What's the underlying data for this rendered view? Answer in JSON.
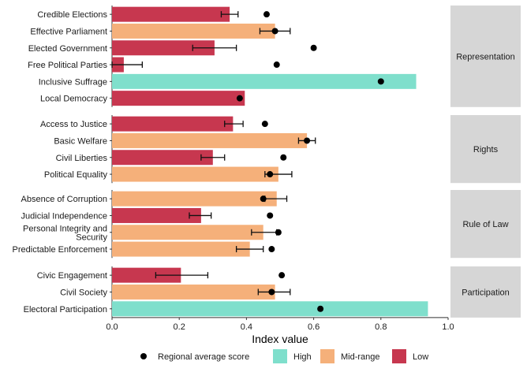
{
  "chart_data": {
    "type": "bar",
    "orientation": "horizontal",
    "xlabel": "Index value",
    "xlim": [
      0,
      1.0
    ],
    "xticks": [
      "0.0",
      "0.2",
      "0.4",
      "0.6",
      "0.8",
      "1.0"
    ],
    "grid": false,
    "legend_position": "bottom",
    "legend": {
      "marker_label": "Regional average score",
      "categories": [
        {
          "key": "high",
          "label": "High",
          "color": "#7fdfcc"
        },
        {
          "key": "mid",
          "label": "Mid-range",
          "color": "#f5b07a"
        },
        {
          "key": "low",
          "label": "Low",
          "color": "#c7374f"
        }
      ]
    },
    "panels": [
      {
        "strip": "Representation",
        "rows": [
          {
            "label": "Credible Elections",
            "value": 0.35,
            "err_low": 0.325,
            "err_high": 0.375,
            "category": "low",
            "regional_avg": 0.46
          },
          {
            "label": "Effective Parliament",
            "value": 0.485,
            "err_low": 0.44,
            "err_high": 0.53,
            "category": "mid",
            "regional_avg": 0.485
          },
          {
            "label": "Elected Government",
            "value": 0.305,
            "err_low": 0.24,
            "err_high": 0.37,
            "category": "low",
            "regional_avg": 0.6
          },
          {
            "label": "Free Political Parties",
            "value": 0.035,
            "err_low": 0.0,
            "err_high": 0.09,
            "category": "low",
            "regional_avg": 0.49
          },
          {
            "label": "Inclusive Suffrage",
            "value": 0.905,
            "category": "high",
            "regional_avg": 0.8
          },
          {
            "label": "Local Democracy",
            "value": 0.395,
            "category": "low",
            "regional_avg": 0.38
          }
        ]
      },
      {
        "strip": "Rights",
        "rows": [
          {
            "label": "Access to Justice",
            "value": 0.36,
            "err_low": 0.335,
            "err_high": 0.39,
            "category": "low",
            "regional_avg": 0.455
          },
          {
            "label": "Basic Welfare",
            "value": 0.58,
            "err_low": 0.555,
            "err_high": 0.605,
            "category": "mid",
            "regional_avg": 0.58
          },
          {
            "label": "Civil Liberties",
            "value": 0.3,
            "err_low": 0.265,
            "err_high": 0.335,
            "category": "low",
            "regional_avg": 0.51
          },
          {
            "label": "Political Equality",
            "value": 0.495,
            "err_low": 0.455,
            "err_high": 0.535,
            "category": "mid",
            "regional_avg": 0.47
          }
        ]
      },
      {
        "strip": "Rule of Law",
        "rows": [
          {
            "label": "Absence of Corruption",
            "value": 0.49,
            "err_low": 0.455,
            "err_high": 0.52,
            "category": "mid",
            "regional_avg": 0.45
          },
          {
            "label": "Judicial Independence",
            "value": 0.265,
            "err_low": 0.23,
            "err_high": 0.295,
            "category": "low",
            "regional_avg": 0.47
          },
          {
            "label": "Personal Integrity and\nSecurity",
            "value": 0.45,
            "err_low": 0.415,
            "err_high": 0.49,
            "category": "mid",
            "regional_avg": 0.495
          },
          {
            "label": "Predictable Enforcement",
            "value": 0.41,
            "err_low": 0.37,
            "err_high": 0.45,
            "category": "mid",
            "regional_avg": 0.475
          }
        ]
      },
      {
        "strip": "Participation",
        "rows": [
          {
            "label": "Civic Engagement",
            "value": 0.205,
            "err_low": 0.13,
            "err_high": 0.285,
            "category": "low",
            "regional_avg": 0.505
          },
          {
            "label": "Civil Society",
            "value": 0.485,
            "err_low": 0.435,
            "err_high": 0.53,
            "category": "mid",
            "regional_avg": 0.475
          },
          {
            "label": "Electoral Participation",
            "value": 0.94,
            "category": "high",
            "regional_avg": 0.62
          }
        ]
      }
    ]
  }
}
